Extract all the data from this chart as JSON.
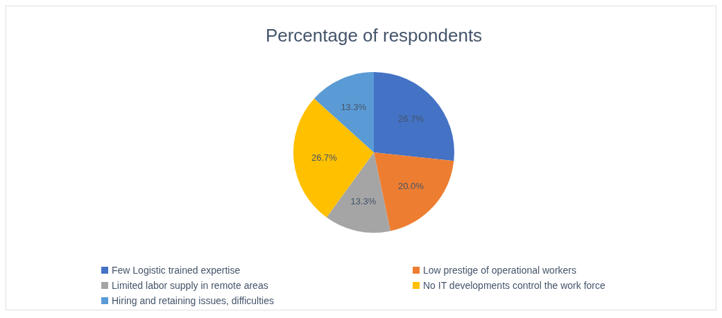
{
  "chart_data": {
    "type": "pie",
    "title": "Percentage of respondents",
    "categories": [
      "Few Logistic trained expertise",
      "Low prestige of operational  workers",
      "Limited labor supply in remote areas",
      "No IT developments control the work force",
      "Hiring and retaining issues, difficulties"
    ],
    "values": [
      26.7,
      20.0,
      13.3,
      26.7,
      13.3
    ],
    "colors": [
      "#4472c4",
      "#ed7d31",
      "#a5a5a5",
      "#ffc000",
      "#5b9bd5"
    ],
    "value_labels": [
      "26.7%",
      "20.0%",
      "13.3%",
      "26.7%",
      "13.3%"
    ],
    "legend": "bottom"
  }
}
